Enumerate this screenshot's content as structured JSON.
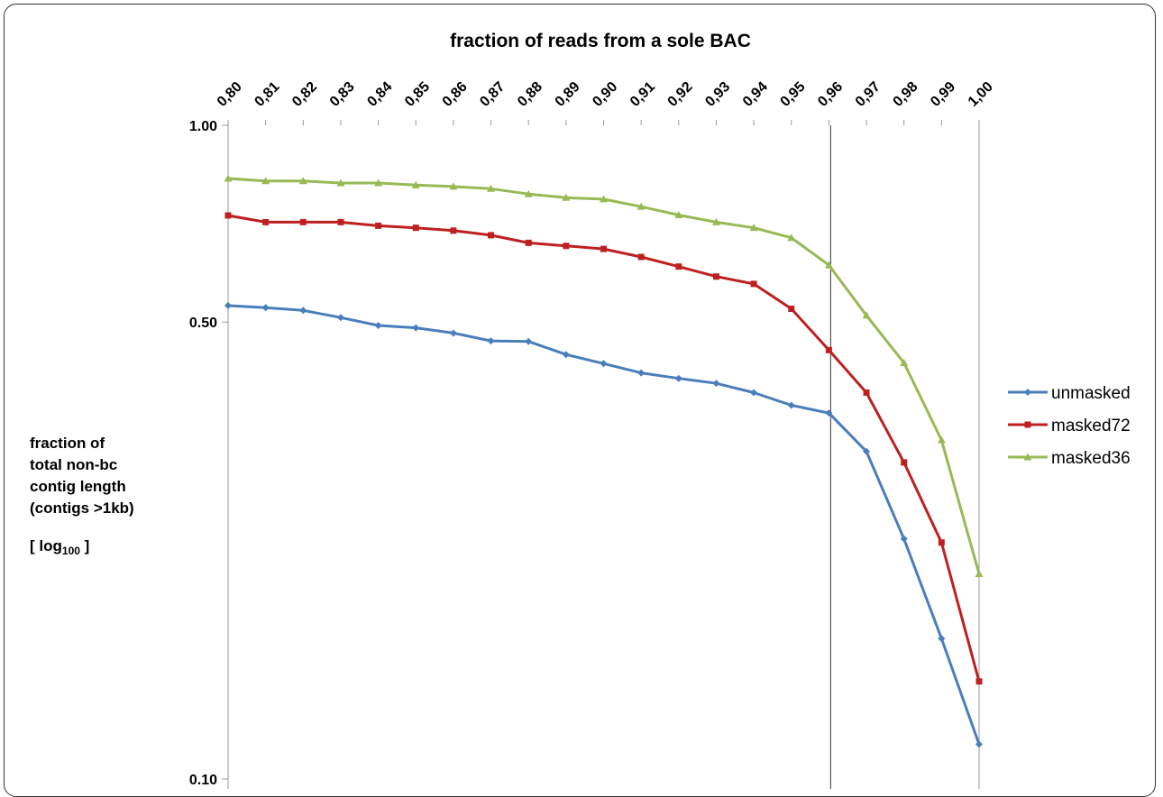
{
  "chart_data": {
    "type": "line",
    "title": "fraction of reads from a sole BAC",
    "xlabel": "",
    "ylabel_lines": [
      "fraction of",
      "total non-bc",
      "contig length",
      "(contigs >1kb)"
    ],
    "ylabel_log": {
      "prefix": "[ log",
      "sub": "100",
      "suffix": " ]"
    },
    "x_position": "top",
    "y_scale": "log",
    "ylim": [
      0.1,
      1.0
    ],
    "yticks": [
      {
        "value": 1.0,
        "label": "1.00"
      },
      {
        "value": 0.5,
        "label": "0.50"
      },
      {
        "value": 0.1,
        "label": "0.10"
      }
    ],
    "categories": [
      "0,80",
      "0,81",
      "0,82",
      "0,83",
      "0,84",
      "0,85",
      "0,86",
      "0,87",
      "0,88",
      "0,89",
      "0,90",
      "0,91",
      "0,92",
      "0,93",
      "0,94",
      "0,95",
      "0,96",
      "0,97",
      "0,98",
      "0,99",
      "1,00"
    ],
    "vertical_reference_line": "0,96",
    "legend_position": "right",
    "series": [
      {
        "name": "unmasked",
        "color": "#4a7ebb",
        "marker": "diamond",
        "values": [
          0.53,
          0.526,
          0.521,
          0.508,
          0.494,
          0.49,
          0.481,
          0.468,
          0.467,
          0.446,
          0.432,
          0.418,
          0.41,
          0.403,
          0.39,
          0.373,
          0.363,
          0.317,
          0.233,
          0.164,
          0.113
        ]
      },
      {
        "name": "masked72",
        "color": "#be2020",
        "marker": "square",
        "values": [
          0.728,
          0.711,
          0.711,
          0.711,
          0.702,
          0.697,
          0.69,
          0.679,
          0.661,
          0.654,
          0.647,
          0.629,
          0.608,
          0.587,
          0.572,
          0.524,
          0.453,
          0.39,
          0.305,
          0.23,
          0.141
        ]
      },
      {
        "name": "masked36",
        "color": "#98b954",
        "marker": "triangle",
        "values": [
          0.829,
          0.822,
          0.822,
          0.816,
          0.816,
          0.81,
          0.806,
          0.8,
          0.785,
          0.775,
          0.771,
          0.751,
          0.729,
          0.711,
          0.697,
          0.673,
          0.611,
          0.512,
          0.433,
          0.33,
          0.206
        ]
      }
    ]
  }
}
